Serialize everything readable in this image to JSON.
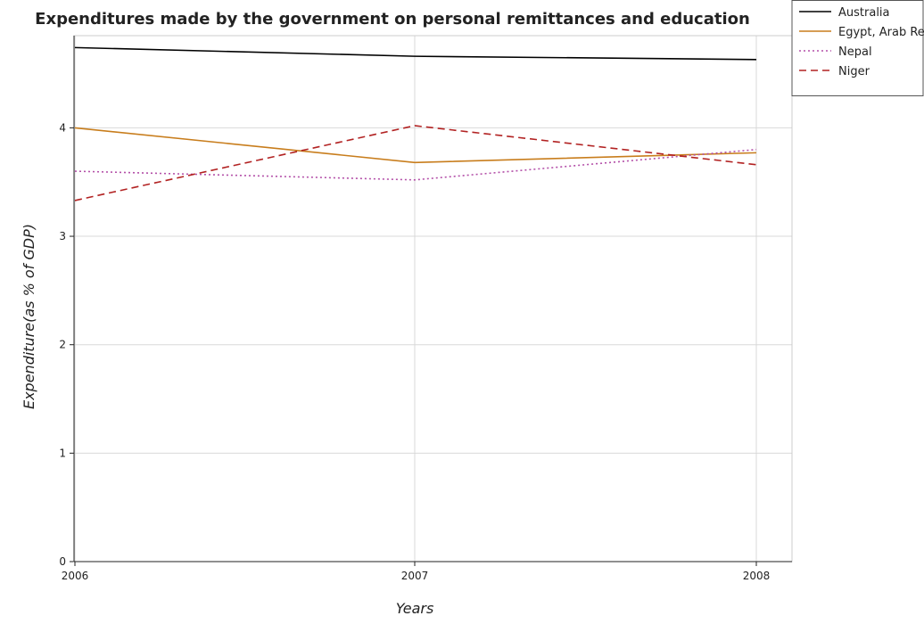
{
  "chart_data": {
    "type": "line",
    "title": "Expenditures made by the government on personal remittances and education",
    "xlabel": "Years",
    "ylabel": "Expenditure(as % of GDP)",
    "x": [
      "2006",
      "2007",
      "2008"
    ],
    "ylim": [
      0,
      4.85
    ],
    "yticks": [
      0,
      1,
      2,
      3,
      4
    ],
    "grid": true,
    "legend_position": "top-right",
    "series": [
      {
        "name": "Australia",
        "values": [
          4.74,
          4.66,
          4.63
        ],
        "color": "#000000",
        "dash": "solid"
      },
      {
        "name": "Egypt, Arab Rep.",
        "values": [
          4.0,
          3.68,
          3.77
        ],
        "color": "#c87d1c",
        "dash": "solid"
      },
      {
        "name": "Nepal",
        "values": [
          3.6,
          3.52,
          3.8
        ],
        "color": "#b34fa8",
        "dash": "dotted"
      },
      {
        "name": "Niger",
        "values": [
          3.33,
          4.02,
          3.66
        ],
        "color": "#b22222",
        "dash": "dashed"
      }
    ]
  }
}
